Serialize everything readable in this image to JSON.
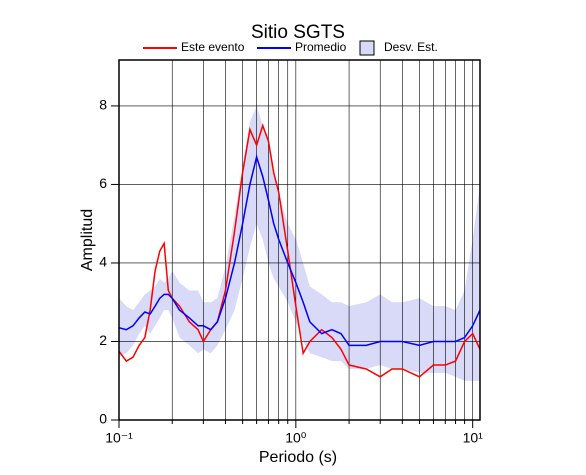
{
  "chart_data": {
    "type": "line",
    "title": "Sitio SGTS",
    "xlabel": "Periodo (s)",
    "ylabel": "Amplitud",
    "xscale": "log",
    "xlim": [
      0.1,
      11
    ],
    "ylim": [
      0,
      9.17
    ],
    "xticks": [
      {
        "value": 0.1,
        "label": "10⁻¹"
      },
      {
        "value": 1,
        "label": "10⁰"
      },
      {
        "value": 10,
        "label": "10¹"
      }
    ],
    "x_minor_ticks": [
      0.2,
      0.3,
      0.4,
      0.5,
      0.6,
      0.7,
      0.8,
      0.9,
      2,
      3,
      4,
      5,
      6,
      7,
      8,
      9
    ],
    "yticks": [
      0,
      2,
      4,
      6,
      8
    ],
    "grid": true,
    "legend": "top",
    "x": [
      0.1,
      0.11,
      0.12,
      0.13,
      0.14,
      0.15,
      0.16,
      0.17,
      0.18,
      0.19,
      0.2,
      0.22,
      0.25,
      0.28,
      0.3,
      0.33,
      0.36,
      0.4,
      0.45,
      0.5,
      0.55,
      0.6,
      0.65,
      0.7,
      0.75,
      0.8,
      0.9,
      1.0,
      1.1,
      1.2,
      1.4,
      1.6,
      1.8,
      2.0,
      2.5,
      3.0,
      3.5,
      4,
      5,
      6,
      7,
      8,
      9,
      10,
      11
    ],
    "series": [
      {
        "name": "Este evento",
        "color": "#ff0000",
        "values": [
          1.75,
          1.5,
          1.6,
          1.9,
          2.1,
          2.8,
          3.8,
          4.3,
          4.5,
          3.3,
          3.1,
          2.9,
          2.5,
          2.3,
          2.0,
          2.3,
          2.5,
          3.3,
          4.8,
          6.3,
          7.4,
          7.0,
          7.5,
          7.1,
          6.3,
          5.8,
          4.3,
          2.9,
          1.7,
          2.0,
          2.3,
          2.1,
          1.8,
          1.4,
          1.3,
          1.1,
          1.3,
          1.3,
          1.1,
          1.4,
          1.4,
          1.5,
          2.0,
          2.2,
          1.8
        ]
      },
      {
        "name": "Promedio",
        "color": "#0000ff",
        "values": [
          2.35,
          2.3,
          2.4,
          2.6,
          2.75,
          2.7,
          2.9,
          3.1,
          3.2,
          3.2,
          3.1,
          2.8,
          2.6,
          2.4,
          2.4,
          2.3,
          2.5,
          3.1,
          4.0,
          5.0,
          6.0,
          6.7,
          6.2,
          5.6,
          5.0,
          4.6,
          4.0,
          3.5,
          3.0,
          2.5,
          2.2,
          2.3,
          2.2,
          1.9,
          1.9,
          2.0,
          2.0,
          2.0,
          1.9,
          2.0,
          2.0,
          2.0,
          2.1,
          2.4,
          2.8
        ]
      }
    ],
    "band": {
      "name": "Desv. Est.",
      "color": "#d8daf8",
      "upper": [
        3.1,
        2.9,
        2.8,
        3.0,
        3.2,
        3.3,
        3.4,
        3.6,
        3.5,
        3.6,
        3.8,
        3.5,
        3.3,
        3.3,
        3.0,
        3.0,
        3.1,
        3.9,
        5.2,
        6.5,
        7.6,
        8.0,
        7.5,
        7.2,
        6.3,
        5.8,
        5.0,
        4.6,
        4.0,
        3.4,
        3.2,
        3.0,
        3.0,
        2.9,
        3.0,
        3.2,
        3.0,
        3.0,
        3.1,
        2.9,
        2.9,
        2.8,
        3.3,
        4.6,
        6.0
      ],
      "lower": [
        1.6,
        1.7,
        1.9,
        2.2,
        2.4,
        2.2,
        2.4,
        2.6,
        2.8,
        2.8,
        2.6,
        2.1,
        1.9,
        1.7,
        1.8,
        1.7,
        1.9,
        2.3,
        2.8,
        3.6,
        4.4,
        5.0,
        4.6,
        4.0,
        3.6,
        3.4,
        3.0,
        2.5,
        2.0,
        1.7,
        1.6,
        1.5,
        1.5,
        1.3,
        1.3,
        1.4,
        1.3,
        1.3,
        1.2,
        1.2,
        1.2,
        1.1,
        1.0,
        1.0,
        1.0
      ]
    }
  }
}
